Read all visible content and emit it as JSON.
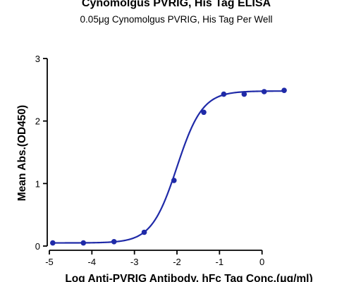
{
  "chart_data": {
    "type": "scatter",
    "title": "Cynomolgus PVRIG, His Tag ELISA",
    "subtitle": "0.05μg Cynomolgus PVRIG, His Tag Per Well",
    "xlabel": "Log Anti-PVRIG Antibody, hFc Tag Conc.(μg/ml)",
    "ylabel": "Mean Abs.(OD450)",
    "xlim": [
      -5,
      1
    ],
    "ylim": [
      0,
      3
    ],
    "x_ticks": [
      -5,
      -4,
      -3,
      -2,
      -1,
      0
    ],
    "y_ticks": [
      0,
      1,
      2,
      3
    ],
    "x_tick_labels": [
      "-5",
      "-4",
      "-3",
      "-2",
      "-1",
      "0"
    ],
    "y_tick_labels": [
      "0",
      "1",
      "2",
      "3"
    ],
    "grid": false,
    "series": [
      {
        "x": [
          -4.92,
          -4.2,
          -3.48,
          -2.77,
          -2.07,
          -1.37,
          -0.9,
          -0.42,
          0.05,
          0.52
        ],
        "y": [
          0.05,
          0.05,
          0.07,
          0.22,
          1.05,
          2.14,
          2.43,
          2.43,
          2.47,
          2.49
        ]
      }
    ],
    "fit_curve": {
      "model": "4PL",
      "bottom": 0.05,
      "top": 2.48,
      "log_ec50": -2.0,
      "hill_slope": 1.45
    },
    "colors": {
      "series": "#1f2aa8",
      "axis": "#000000"
    }
  }
}
